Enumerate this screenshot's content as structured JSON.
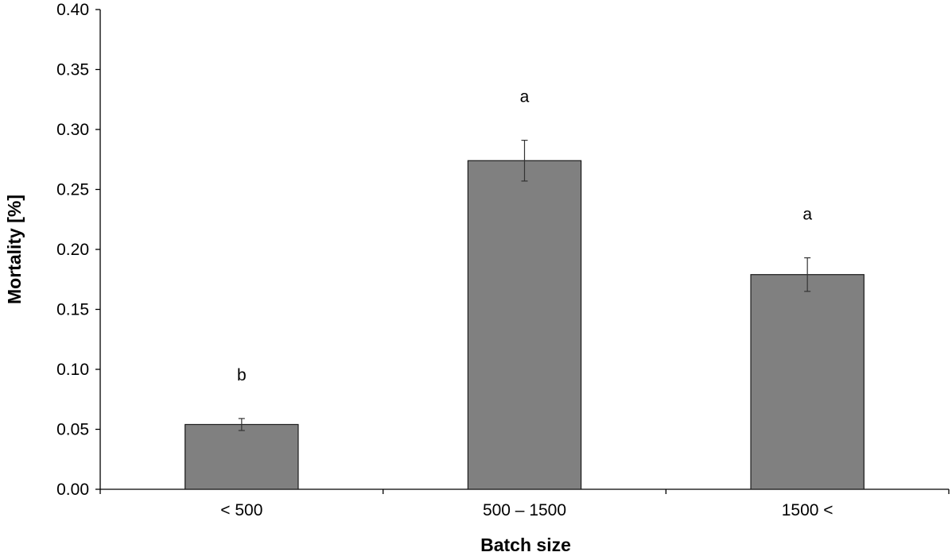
{
  "chart_data": {
    "type": "bar",
    "title": "",
    "xlabel": "Batch size",
    "ylabel": "Mortality [%]",
    "categories": [
      "< 500",
      "500 – 1500",
      "1500 <"
    ],
    "values": [
      0.054,
      0.274,
      0.179
    ],
    "error": [
      0.005,
      0.017,
      0.014
    ],
    "significance_labels": [
      "b",
      "a",
      "a"
    ],
    "ylim": [
      0,
      0.4
    ],
    "yticks": [
      0,
      0.05,
      0.1,
      0.15,
      0.2,
      0.25,
      0.3,
      0.35,
      0.4
    ],
    "ytick_labels": [
      "0.00",
      "0.05",
      "0.10",
      "0.15",
      "0.20",
      "0.25",
      "0.30",
      "0.35",
      "0.40"
    ],
    "grid": false,
    "bar_color": "#808080",
    "bar_edge_color": "#1a1a1a"
  }
}
